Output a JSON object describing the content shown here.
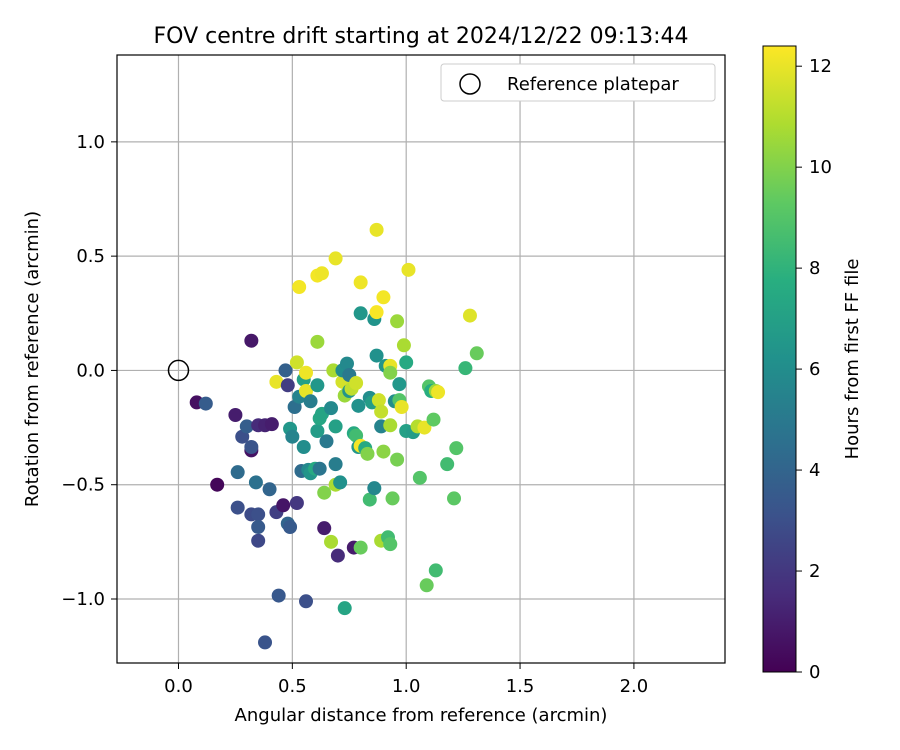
{
  "chart_data": {
    "type": "scatter",
    "title": "FOV centre drift starting at 2024/12/22 09:13:44",
    "xlabel": "Angular distance from reference (arcmin)",
    "ylabel": "Rotation from reference (arcmin)",
    "xlim": [
      -0.27,
      2.4
    ],
    "ylim": [
      -1.28,
      1.38
    ],
    "xticks": [
      0.0,
      0.5,
      1.0,
      1.5,
      2.0
    ],
    "xtick_labels": [
      "0.0",
      "0.5",
      "1.0",
      "1.5",
      "2.0"
    ],
    "yticks": [
      -1.0,
      -0.5,
      0.0,
      0.5,
      1.0
    ],
    "ytick_labels": [
      "−1.0",
      "−0.5",
      "0.0",
      "0.5",
      "1.0"
    ],
    "grid": true,
    "legend": {
      "position": "top-right",
      "entries": [
        "Reference platepar"
      ]
    },
    "reference_point": {
      "x": 0.0,
      "y": 0.0,
      "label": "Reference platepar"
    },
    "colorbar": {
      "label": "Hours from first FF file",
      "colormap": "viridis",
      "range": [
        0,
        12.4
      ],
      "ticks": [
        0,
        2,
        4,
        6,
        8,
        10,
        12
      ],
      "tick_labels": [
        "0",
        "2",
        "4",
        "6",
        "8",
        "10",
        "12"
      ]
    },
    "points": [
      {
        "x": 0.08,
        "y": -0.14,
        "h": 0.5
      },
      {
        "x": 0.12,
        "y": -0.145,
        "h": 3.6
      },
      {
        "x": 0.17,
        "y": -0.5,
        "h": 0.2
      },
      {
        "x": 0.25,
        "y": -0.195,
        "h": 1.0
      },
      {
        "x": 0.26,
        "y": -0.6,
        "h": 3.0
      },
      {
        "x": 0.26,
        "y": -0.445,
        "h": 4.3
      },
      {
        "x": 0.28,
        "y": -0.29,
        "h": 3.0
      },
      {
        "x": 0.3,
        "y": -0.245,
        "h": 3.7
      },
      {
        "x": 0.32,
        "y": -0.35,
        "h": 0.6
      },
      {
        "x": 0.32,
        "y": 0.13,
        "h": 0.8
      },
      {
        "x": 0.32,
        "y": -0.63,
        "h": 2.8
      },
      {
        "x": 0.32,
        "y": -0.335,
        "h": 3.2
      },
      {
        "x": 0.34,
        "y": -0.49,
        "h": 4.6
      },
      {
        "x": 0.35,
        "y": -0.24,
        "h": 1.5
      },
      {
        "x": 0.35,
        "y": -0.63,
        "h": 3.0
      },
      {
        "x": 0.35,
        "y": -0.745,
        "h": 2.7
      },
      {
        "x": 0.35,
        "y": -0.685,
        "h": 3.5
      },
      {
        "x": 0.38,
        "y": -0.24,
        "h": 1.2
      },
      {
        "x": 0.38,
        "y": -1.19,
        "h": 3.2
      },
      {
        "x": 0.4,
        "y": -0.52,
        "h": 4.0
      },
      {
        "x": 0.41,
        "y": -0.235,
        "h": 1.0
      },
      {
        "x": 0.43,
        "y": -0.05,
        "h": 12.0
      },
      {
        "x": 0.43,
        "y": -0.62,
        "h": 2.3
      },
      {
        "x": 0.44,
        "y": -0.985,
        "h": 3.4
      },
      {
        "x": 0.46,
        "y": -0.59,
        "h": 0.7
      },
      {
        "x": 0.47,
        "y": 0.0,
        "h": 3.8
      },
      {
        "x": 0.48,
        "y": -0.065,
        "h": 2.2
      },
      {
        "x": 0.48,
        "y": -0.67,
        "h": 4.0
      },
      {
        "x": 0.49,
        "y": -0.685,
        "h": 3.5
      },
      {
        "x": 0.49,
        "y": -0.255,
        "h": 6.5
      },
      {
        "x": 0.5,
        "y": -0.29,
        "h": 5.5
      },
      {
        "x": 0.51,
        "y": -0.16,
        "h": 4.5
      },
      {
        "x": 0.52,
        "y": 0.035,
        "h": 11.5
      },
      {
        "x": 0.52,
        "y": -0.58,
        "h": 2.0
      },
      {
        "x": 0.53,
        "y": -0.115,
        "h": 5.5
      },
      {
        "x": 0.53,
        "y": 0.365,
        "h": 12.2
      },
      {
        "x": 0.54,
        "y": -0.44,
        "h": 4.3
      },
      {
        "x": 0.55,
        "y": -0.335,
        "h": 6.0
      },
      {
        "x": 0.55,
        "y": -0.04,
        "h": 7.0
      },
      {
        "x": 0.56,
        "y": -0.01,
        "h": 12.1
      },
      {
        "x": 0.56,
        "y": -0.09,
        "h": 12.0
      },
      {
        "x": 0.56,
        "y": -1.01,
        "h": 3.0
      },
      {
        "x": 0.57,
        "y": -0.435,
        "h": 5.8
      },
      {
        "x": 0.58,
        "y": -0.135,
        "h": 5.2
      },
      {
        "x": 0.58,
        "y": -0.45,
        "h": 6.4
      },
      {
        "x": 0.6,
        "y": -0.43,
        "h": 7.5
      },
      {
        "x": 0.61,
        "y": -0.265,
        "h": 6.8
      },
      {
        "x": 0.61,
        "y": -0.065,
        "h": 6.5
      },
      {
        "x": 0.61,
        "y": 0.125,
        "h": 10.5
      },
      {
        "x": 0.61,
        "y": 0.415,
        "h": 12.2
      },
      {
        "x": 0.62,
        "y": -0.21,
        "h": 7.3
      },
      {
        "x": 0.62,
        "y": -0.43,
        "h": 4.8
      },
      {
        "x": 0.63,
        "y": 0.425,
        "h": 12.1
      },
      {
        "x": 0.63,
        "y": -0.19,
        "h": 7.2
      },
      {
        "x": 0.64,
        "y": -0.535,
        "h": 10.0
      },
      {
        "x": 0.64,
        "y": -0.69,
        "h": 1.0
      },
      {
        "x": 0.65,
        "y": -0.31,
        "h": 5.0
      },
      {
        "x": 0.67,
        "y": -0.165,
        "h": 5.8
      },
      {
        "x": 0.67,
        "y": -0.75,
        "h": 10.8
      },
      {
        "x": 0.68,
        "y": 0.0,
        "h": 10.8
      },
      {
        "x": 0.69,
        "y": 0.49,
        "h": 12.0
      },
      {
        "x": 0.69,
        "y": -0.245,
        "h": 7.0
      },
      {
        "x": 0.69,
        "y": -0.41,
        "h": 5.2
      },
      {
        "x": 0.69,
        "y": -0.5,
        "h": 10.8
      },
      {
        "x": 0.7,
        "y": -0.81,
        "h": 1.5
      },
      {
        "x": 0.71,
        "y": -0.49,
        "h": 6.2
      },
      {
        "x": 0.72,
        "y": -0.05,
        "h": 11.6
      },
      {
        "x": 0.72,
        "y": 0.0,
        "h": 6.0
      },
      {
        "x": 0.73,
        "y": -0.11,
        "h": 10.5
      },
      {
        "x": 0.73,
        "y": -1.04,
        "h": 7.2
      },
      {
        "x": 0.74,
        "y": 0.03,
        "h": 5.8
      },
      {
        "x": 0.75,
        "y": -0.02,
        "h": 5.0
      },
      {
        "x": 0.75,
        "y": -0.09,
        "h": 6.4
      },
      {
        "x": 0.76,
        "y": -0.08,
        "h": 11.2
      },
      {
        "x": 0.77,
        "y": -0.775,
        "h": 0.9
      },
      {
        "x": 0.77,
        "y": -0.275,
        "h": 7.5
      },
      {
        "x": 0.78,
        "y": -0.055,
        "h": 11.5
      },
      {
        "x": 0.78,
        "y": -0.285,
        "h": 8.5
      },
      {
        "x": 0.79,
        "y": -0.335,
        "h": 6.5
      },
      {
        "x": 0.79,
        "y": -0.155,
        "h": 6.2
      },
      {
        "x": 0.8,
        "y": -0.33,
        "h": 12.2
      },
      {
        "x": 0.8,
        "y": -0.775,
        "h": 9.5
      },
      {
        "x": 0.8,
        "y": 0.385,
        "h": 12.1
      },
      {
        "x": 0.8,
        "y": 0.25,
        "h": 6.5
      },
      {
        "x": 0.82,
        "y": -0.34,
        "h": 7.5
      },
      {
        "x": 0.83,
        "y": -0.365,
        "h": 10.0
      },
      {
        "x": 0.84,
        "y": -0.12,
        "h": 6.0
      },
      {
        "x": 0.84,
        "y": -0.565,
        "h": 8.5
      },
      {
        "x": 0.85,
        "y": -0.14,
        "h": 6.8
      },
      {
        "x": 0.86,
        "y": 0.225,
        "h": 6.3
      },
      {
        "x": 0.86,
        "y": -0.515,
        "h": 5.7
      },
      {
        "x": 0.87,
        "y": 0.065,
        "h": 6.2
      },
      {
        "x": 0.87,
        "y": 0.615,
        "h": 12.0
      },
      {
        "x": 0.87,
        "y": 0.255,
        "h": 12.3
      },
      {
        "x": 0.88,
        "y": -0.13,
        "h": 11.5
      },
      {
        "x": 0.89,
        "y": -0.18,
        "h": 11.3
      },
      {
        "x": 0.89,
        "y": -0.245,
        "h": 5.5
      },
      {
        "x": 0.89,
        "y": -0.745,
        "h": 10.8
      },
      {
        "x": 0.9,
        "y": 0.32,
        "h": 12.2
      },
      {
        "x": 0.9,
        "y": -0.355,
        "h": 10.2
      },
      {
        "x": 0.91,
        "y": 0.02,
        "h": 6.4
      },
      {
        "x": 0.92,
        "y": -0.73,
        "h": 8.5
      },
      {
        "x": 0.93,
        "y": 0.02,
        "h": 12.0
      },
      {
        "x": 0.93,
        "y": -0.76,
        "h": 9.0
      },
      {
        "x": 0.93,
        "y": -0.01,
        "h": 10.0
      },
      {
        "x": 0.93,
        "y": -0.24,
        "h": 10.8
      },
      {
        "x": 0.94,
        "y": -0.56,
        "h": 9.5
      },
      {
        "x": 0.95,
        "y": -0.135,
        "h": 6.0
      },
      {
        "x": 0.96,
        "y": 0.215,
        "h": 10.5
      },
      {
        "x": 0.96,
        "y": -0.39,
        "h": 9.8
      },
      {
        "x": 0.97,
        "y": -0.06,
        "h": 6.5
      },
      {
        "x": 0.97,
        "y": -0.13,
        "h": 9.0
      },
      {
        "x": 0.98,
        "y": -0.16,
        "h": 12.0
      },
      {
        "x": 0.99,
        "y": 0.11,
        "h": 10.8
      },
      {
        "x": 1.0,
        "y": -0.265,
        "h": 7.0
      },
      {
        "x": 1.0,
        "y": 0.035,
        "h": 7.5
      },
      {
        "x": 1.01,
        "y": 0.44,
        "h": 12.0
      },
      {
        "x": 1.03,
        "y": -0.27,
        "h": 6.8
      },
      {
        "x": 1.05,
        "y": -0.245,
        "h": 11.0
      },
      {
        "x": 1.06,
        "y": -0.47,
        "h": 9.0
      },
      {
        "x": 1.08,
        "y": -0.25,
        "h": 12.0
      },
      {
        "x": 1.09,
        "y": -0.94,
        "h": 9.5
      },
      {
        "x": 1.1,
        "y": -0.07,
        "h": 9.0
      },
      {
        "x": 1.11,
        "y": -0.09,
        "h": 7.7
      },
      {
        "x": 1.12,
        "y": -0.215,
        "h": 9.3
      },
      {
        "x": 1.13,
        "y": -0.875,
        "h": 8.5
      },
      {
        "x": 1.13,
        "y": -0.09,
        "h": 10.5
      },
      {
        "x": 1.14,
        "y": -0.095,
        "h": 12.1
      },
      {
        "x": 1.18,
        "y": -0.41,
        "h": 8.5
      },
      {
        "x": 1.21,
        "y": -0.56,
        "h": 9.2
      },
      {
        "x": 1.22,
        "y": -0.34,
        "h": 9.0
      },
      {
        "x": 1.26,
        "y": 0.01,
        "h": 8.2
      },
      {
        "x": 1.28,
        "y": 0.24,
        "h": 11.8
      },
      {
        "x": 1.31,
        "y": 0.075,
        "h": 9.5
      }
    ]
  }
}
